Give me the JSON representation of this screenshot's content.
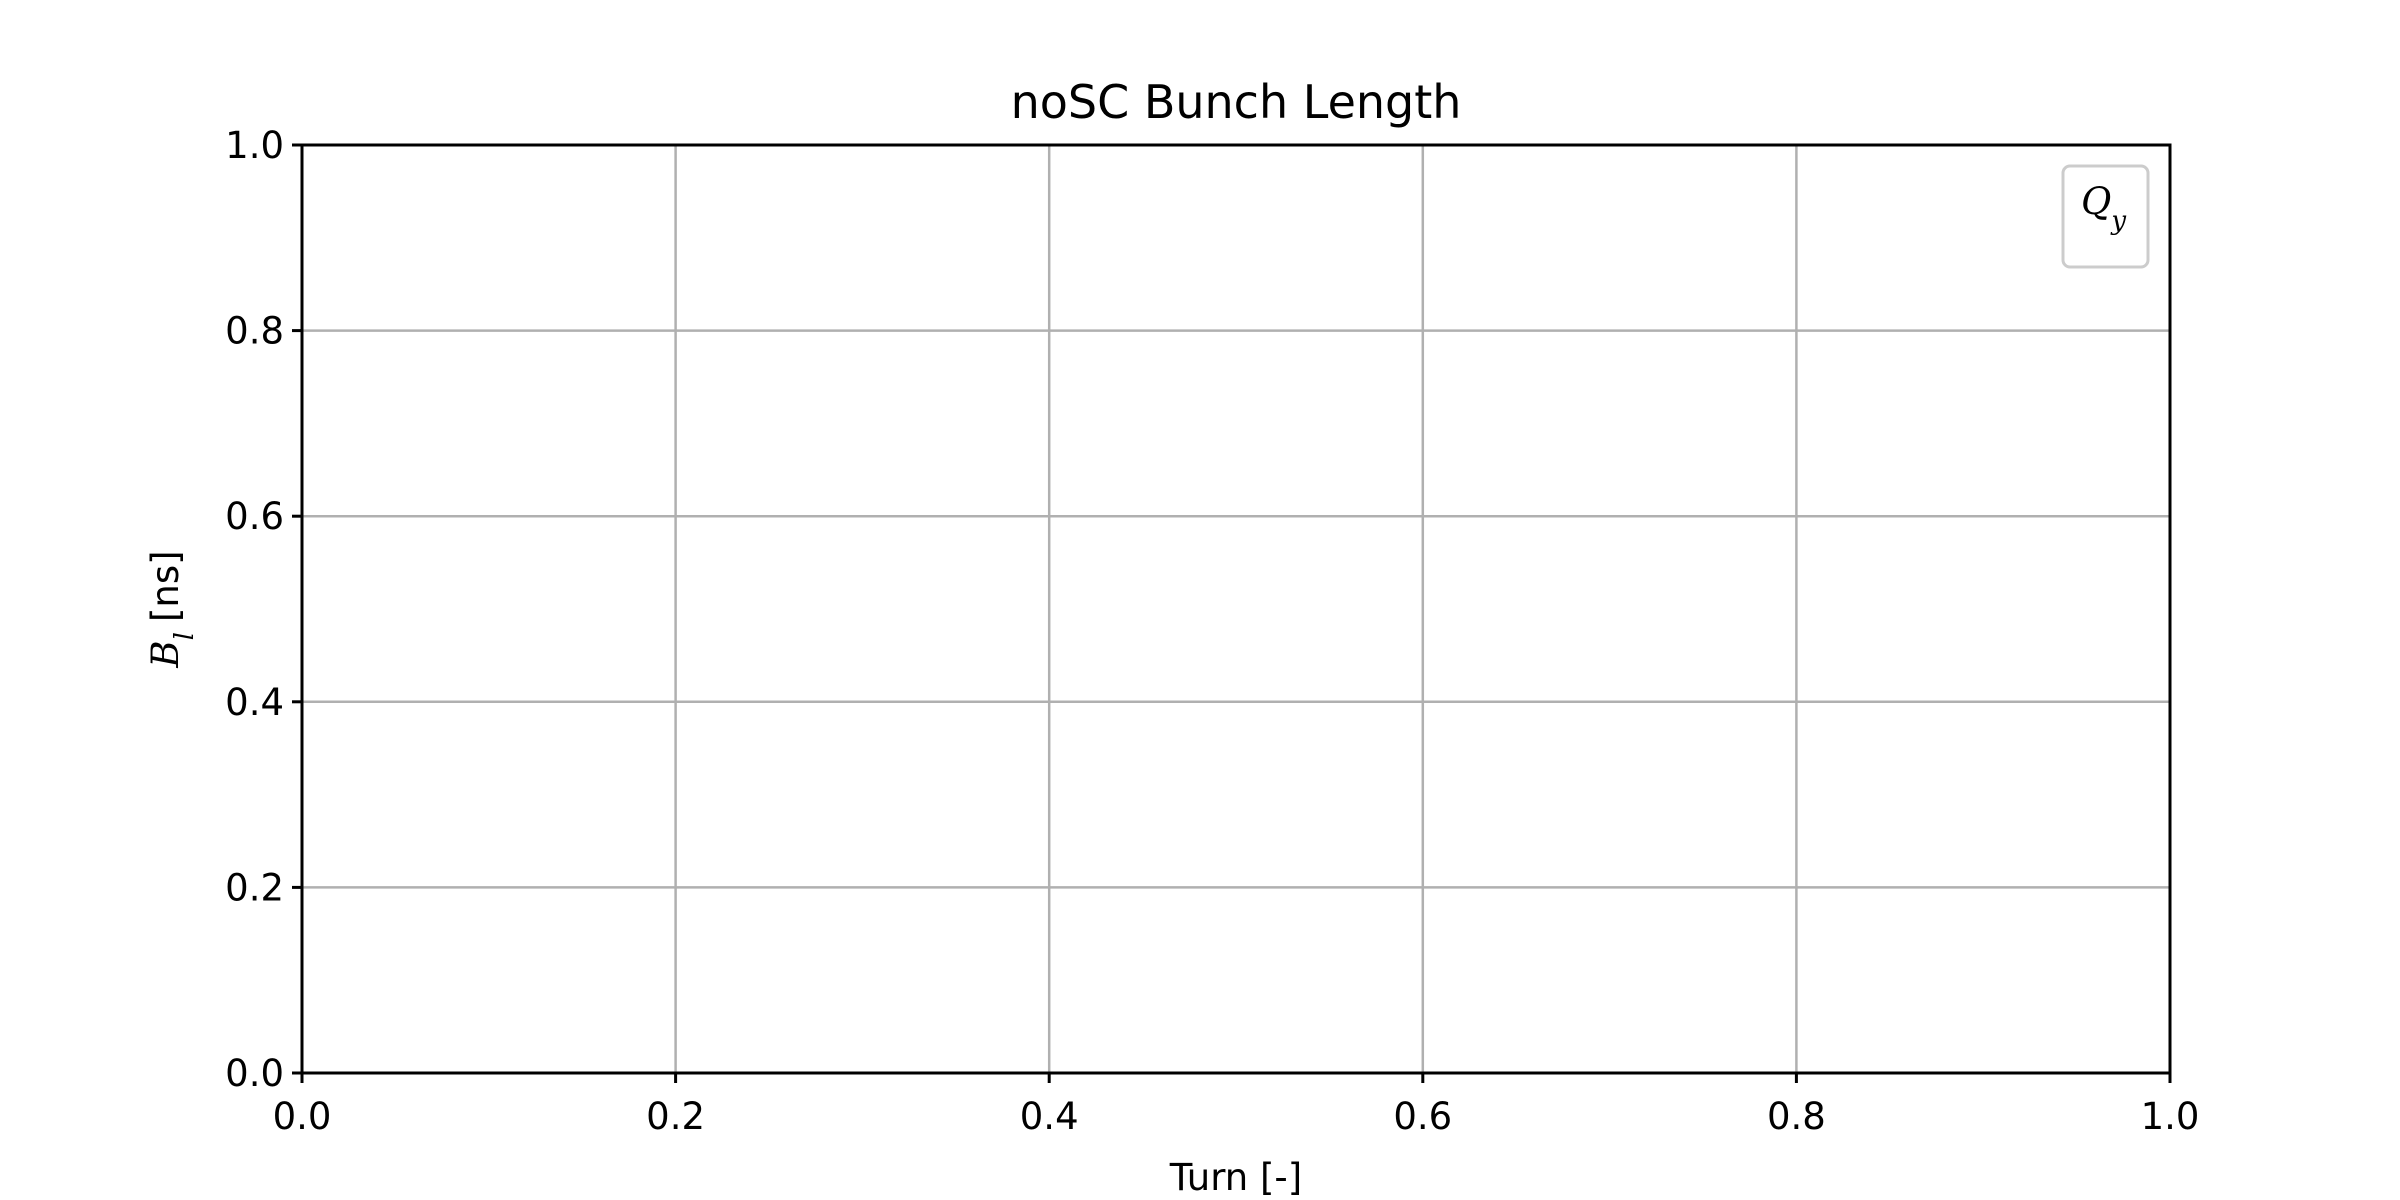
{
  "chart_data": {
    "type": "line",
    "title": "noSC Bunch Length",
    "xlabel": "Turn [-]",
    "ylabel": {
      "symbol": "B",
      "subscript": "l",
      "unit": "[ns]"
    },
    "xlim": [
      0.0,
      1.0
    ],
    "ylim": [
      0.0,
      1.0
    ],
    "xticks": [
      "0.0",
      "0.2",
      "0.4",
      "0.6",
      "0.8",
      "1.0"
    ],
    "yticks": [
      "0.0",
      "0.2",
      "0.4",
      "0.6",
      "0.8",
      "1.0"
    ],
    "grid": true,
    "legend": {
      "position": "top-right",
      "entries": [
        {
          "symbol": "Q",
          "subscript": "y"
        }
      ]
    },
    "series": [
      {
        "name": "Q_y",
        "x": [],
        "y": []
      }
    ],
    "colors": {
      "grid": "#b0b0b0",
      "axes": "#000000",
      "legend_border": "#cccccc",
      "background": "#ffffff"
    }
  }
}
